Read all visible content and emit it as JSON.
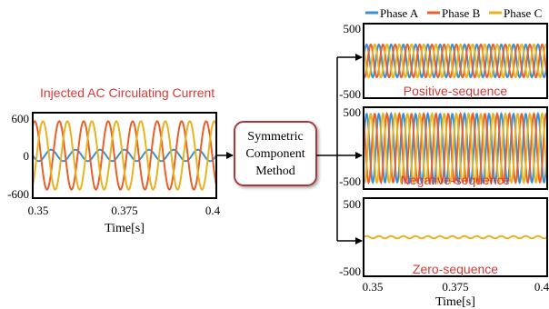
{
  "legend": [
    {
      "label": "Phase A",
      "color": "#3a90d0"
    },
    {
      "label": "Phase B",
      "color": "#e8602a"
    },
    {
      "label": "Phase C",
      "color": "#e7b320"
    }
  ],
  "title_injected": "Injected AC Circulating Current",
  "block_lines": [
    "Symmetric",
    "Component",
    "Method"
  ],
  "accent_color": "#d43a3a",
  "chart_data": [
    {
      "type": "line",
      "title": "Injected AC Circulating Current",
      "xlabel": "Time[s]",
      "ylabel": "",
      "xlim": [
        0.35,
        0.4
      ],
      "ylim": [
        -600,
        600
      ],
      "x_ticks": [
        "0.35",
        "0.375",
        "0.4"
      ],
      "y_ticks": [
        "600",
        "0",
        "-600"
      ],
      "series": [
        {
          "name": "Phase A",
          "amplitude": 80,
          "frequency_hz": 150,
          "phase_deg": 0
        },
        {
          "name": "Phase B",
          "amplitude": 480,
          "frequency_hz": 150,
          "phase_deg": -120
        },
        {
          "name": "Phase C",
          "amplitude": 480,
          "frequency_hz": 150,
          "phase_deg": 120
        }
      ]
    },
    {
      "type": "line",
      "title": "Positive-sequence",
      "xlabel": "",
      "ylabel": "",
      "xlim": [
        0.35,
        0.4
      ],
      "ylim": [
        -500,
        500
      ],
      "y_ticks": [
        "500",
        "-500"
      ],
      "series": [
        {
          "name": "Phase A",
          "amplitude": 220,
          "frequency_hz": 300,
          "phase_deg": 0
        },
        {
          "name": "Phase B",
          "amplitude": 220,
          "frequency_hz": 300,
          "phase_deg": -120
        },
        {
          "name": "Phase C",
          "amplitude": 220,
          "frequency_hz": 300,
          "phase_deg": 120
        }
      ]
    },
    {
      "type": "line",
      "title": "Negative-sequence",
      "xlabel": "",
      "ylabel": "",
      "xlim": [
        0.35,
        0.4
      ],
      "ylim": [
        -500,
        500
      ],
      "y_ticks": [
        "500",
        "-500"
      ],
      "series": [
        {
          "name": "Phase A",
          "amplitude": 420,
          "frequency_hz": 300,
          "phase_deg": 0
        },
        {
          "name": "Phase B",
          "amplitude": 420,
          "frequency_hz": 300,
          "phase_deg": 120
        },
        {
          "name": "Phase C",
          "amplitude": 420,
          "frequency_hz": 300,
          "phase_deg": -120
        }
      ]
    },
    {
      "type": "line",
      "title": "Zero-sequence",
      "xlabel": "Time[s]",
      "ylabel": "",
      "xlim": [
        0.35,
        0.4
      ],
      "ylim": [
        -500,
        500
      ],
      "x_ticks": [
        "0.35",
        "0.375",
        "0.4"
      ],
      "y_ticks": [
        "500",
        "-500"
      ],
      "series": [
        {
          "name": "Phase C",
          "amplitude": 15,
          "frequency_hz": 300,
          "phase_deg": 0
        }
      ]
    }
  ]
}
